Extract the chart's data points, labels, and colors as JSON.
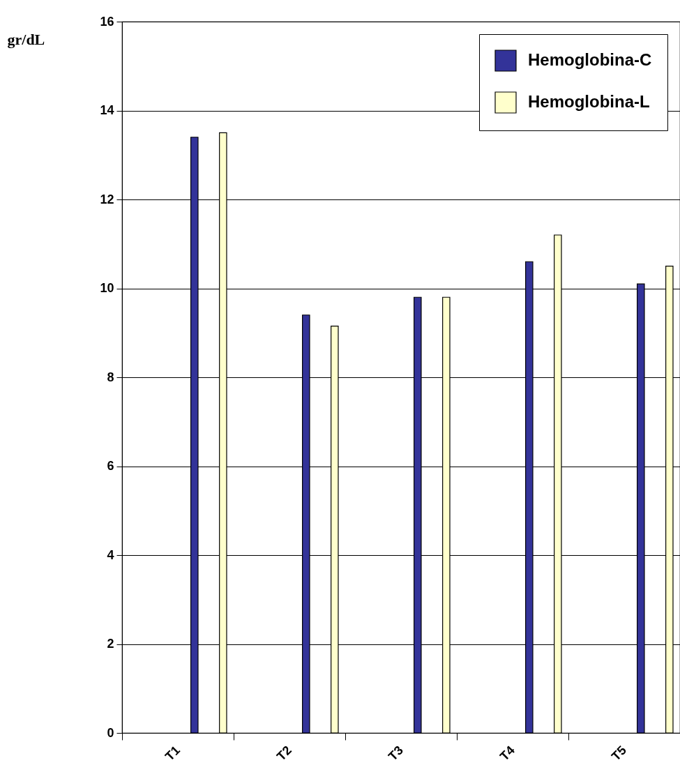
{
  "chart_data": {
    "type": "bar",
    "ylabel": "gr/dL",
    "categories": [
      "T1",
      "T2",
      "T3",
      "T4",
      "T5"
    ],
    "series": [
      {
        "name": "Hemoglobina-C",
        "color": "#333399",
        "values": [
          13.4,
          9.4,
          9.8,
          10.6,
          10.1
        ]
      },
      {
        "name": "Hemoglobina-L",
        "color": "#ffffcc",
        "values": [
          13.5,
          9.15,
          9.8,
          11.2,
          10.5
        ]
      }
    ],
    "ylim": [
      0,
      16
    ],
    "yticks": [
      0,
      2,
      4,
      6,
      8,
      10,
      12,
      14,
      16
    ],
    "grid": "y",
    "legend": "top right"
  }
}
